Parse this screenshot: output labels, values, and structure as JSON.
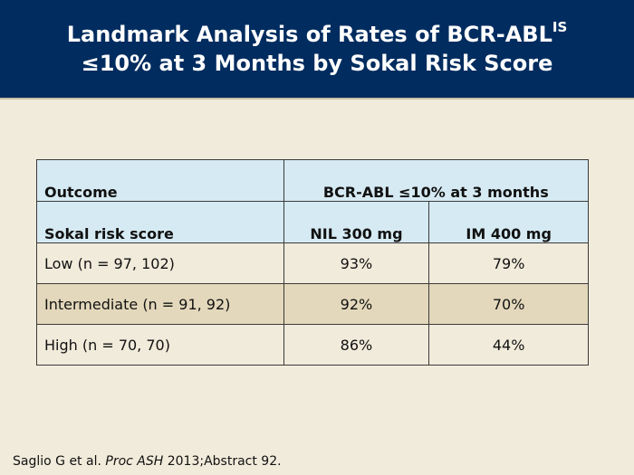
{
  "title": {
    "line1_main": "Landmark Analysis of Rates of BCR-ABL",
    "line1_sup": "IS",
    "line2": "≤10% at 3 Months by Sokal Risk Score"
  },
  "table": {
    "outcome_header": "Outcome",
    "outcome_value_header": "BCR-ABL ≤10% at 3 months",
    "risk_header": "Sokal risk score",
    "col_nil": "NIL 300 mg",
    "col_im": "IM 400 mg",
    "rows": [
      {
        "label": "Low (n = 97, 102)",
        "nil": "93%",
        "im": "79%"
      },
      {
        "label": "Intermediate (n = 91, 92)",
        "nil": "92%",
        "im": "70%"
      },
      {
        "label": "High (n = 70, 70)",
        "nil": "86%",
        "im": "44%"
      }
    ]
  },
  "citation": {
    "authors": "Saglio G et al. ",
    "journal": "Proc ASH",
    "rest": " 2013;Abstract 92."
  }
}
